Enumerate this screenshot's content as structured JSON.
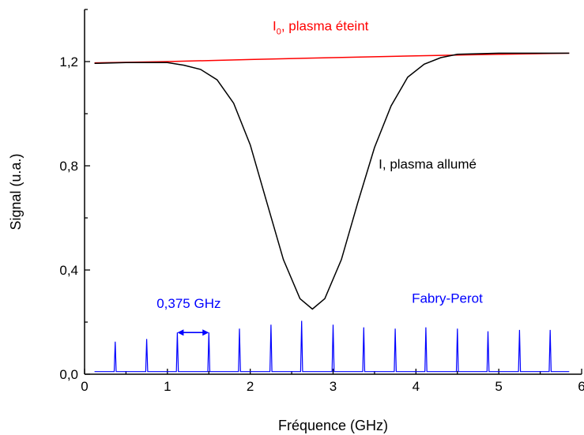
{
  "chart_data": {
    "type": "line",
    "xlabel": "Fréquence (GHz)",
    "ylabel": "Signal (u.a.)",
    "xlim": [
      0,
      6
    ],
    "ylim": [
      0,
      1.4
    ],
    "x_ticks": [
      "0",
      "1",
      "2",
      "3",
      "4",
      "5",
      "6"
    ],
    "y_ticks": [
      "0,0",
      "0,4",
      "0,8",
      "1,2"
    ],
    "grid": false,
    "colors": {
      "I0": "#ff0000",
      "I": "#000000",
      "fabry_perot": "#0000ff"
    },
    "series": [
      {
        "key": "I0",
        "x": [
          0.12,
          1.0,
          2.0,
          3.0,
          4.0,
          5.0,
          5.85
        ],
        "y": [
          1.195,
          1.2,
          1.208,
          1.215,
          1.222,
          1.228,
          1.232
        ]
      },
      {
        "key": "I",
        "x": [
          0.12,
          0.5,
          1.0,
          1.2,
          1.4,
          1.6,
          1.8,
          2.0,
          2.2,
          2.4,
          2.6,
          2.75,
          2.9,
          3.1,
          3.3,
          3.5,
          3.7,
          3.9,
          4.1,
          4.3,
          4.5,
          5.0,
          5.85
        ],
        "y": [
          1.193,
          1.196,
          1.196,
          1.186,
          1.17,
          1.13,
          1.04,
          0.88,
          0.66,
          0.44,
          0.29,
          0.25,
          0.29,
          0.44,
          0.66,
          0.87,
          1.03,
          1.14,
          1.19,
          1.215,
          1.228,
          1.232,
          1.232
        ]
      },
      {
        "key": "fabry_perot",
        "baseline": 0.01,
        "peak_x": [
          0.37,
          0.75,
          1.12,
          1.5,
          1.87,
          2.25,
          2.62,
          3.0,
          3.37,
          3.75,
          4.12,
          4.5,
          4.87,
          5.25,
          5.62
        ],
        "peak_y": [
          0.125,
          0.135,
          0.16,
          0.16,
          0.175,
          0.19,
          0.205,
          0.19,
          0.18,
          0.175,
          0.18,
          0.175,
          0.165,
          0.17,
          0.17
        ]
      }
    ],
    "annotations": {
      "i0_main": "I",
      "i0_sub": "0",
      "i0_rest": ", plasma éteint",
      "i_label": "I, plasma allumé",
      "fp_label": "Fabry-Perot",
      "spacing_label": "0,375 GHz",
      "spacing_range": [
        1.12,
        1.5
      ],
      "spacing_y": 0.16
    }
  }
}
